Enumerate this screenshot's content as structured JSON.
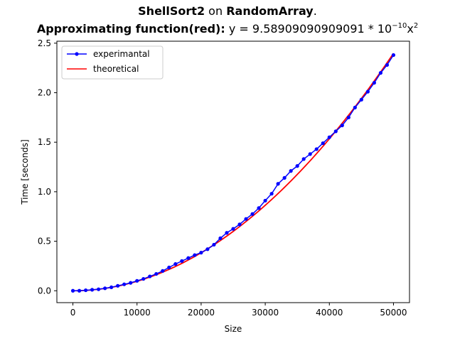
{
  "title": {
    "line1": {
      "algorithm": "ShellSort2",
      "connector": "on",
      "dataset": "RandomArray",
      "end": "."
    },
    "line2": {
      "label": "Approximating function(red)",
      "colon": ":",
      "formula_prefix": "y = 9.58909090909091 * 10",
      "exponent1": "−10",
      "variable": "x",
      "exponent2": "2"
    }
  },
  "chart_data": {
    "type": "line",
    "xlabel": "Size",
    "ylabel": "Time [seconds]",
    "xlim": [
      -2500,
      52500
    ],
    "ylim": [
      -0.12,
      2.52
    ],
    "x_ticks": [
      0,
      10000,
      20000,
      30000,
      40000,
      50000
    ],
    "x_tick_labels": [
      "0",
      "10000",
      "20000",
      "30000",
      "40000",
      "50000"
    ],
    "y_ticks": [
      0.0,
      0.5,
      1.0,
      1.5,
      2.0,
      2.5
    ],
    "y_tick_labels": [
      "0.0",
      "0.5",
      "1.0",
      "1.5",
      "2.0",
      "2.5"
    ],
    "grid": false,
    "legend_position": "top-left",
    "series": [
      {
        "name": "experimantal",
        "color": "#0000ff",
        "marker": "circle",
        "x": [
          0,
          1000,
          2000,
          3000,
          4000,
          5000,
          6000,
          7000,
          8000,
          9000,
          10000,
          11000,
          12000,
          13000,
          14000,
          15000,
          16000,
          17000,
          18000,
          19000,
          20000,
          21000,
          22000,
          23000,
          24000,
          25000,
          26000,
          27000,
          28000,
          29000,
          30000,
          31000,
          32000,
          33000,
          34000,
          35000,
          36000,
          37000,
          38000,
          39000,
          40000,
          41000,
          42000,
          43000,
          44000,
          45000,
          46000,
          47000,
          48000,
          49000,
          50000
        ],
        "y": [
          0.0,
          0.0,
          0.005,
          0.01,
          0.015,
          0.025,
          0.035,
          0.05,
          0.065,
          0.08,
          0.1,
          0.12,
          0.145,
          0.17,
          0.2,
          0.235,
          0.27,
          0.3,
          0.33,
          0.36,
          0.385,
          0.42,
          0.465,
          0.53,
          0.585,
          0.625,
          0.67,
          0.725,
          0.775,
          0.835,
          0.91,
          0.98,
          1.08,
          1.14,
          1.21,
          1.26,
          1.33,
          1.38,
          1.43,
          1.49,
          1.55,
          1.61,
          1.67,
          1.75,
          1.85,
          1.93,
          2.01,
          2.1,
          2.2,
          2.28,
          2.38
        ]
      },
      {
        "name": "theoretical",
        "color": "#ff0000",
        "marker": "none",
        "function": "y = 9.58909090909091e-10 * x^2",
        "coefficient": 9.58909090909091e-10,
        "x_range": [
          0,
          50000
        ]
      }
    ]
  }
}
